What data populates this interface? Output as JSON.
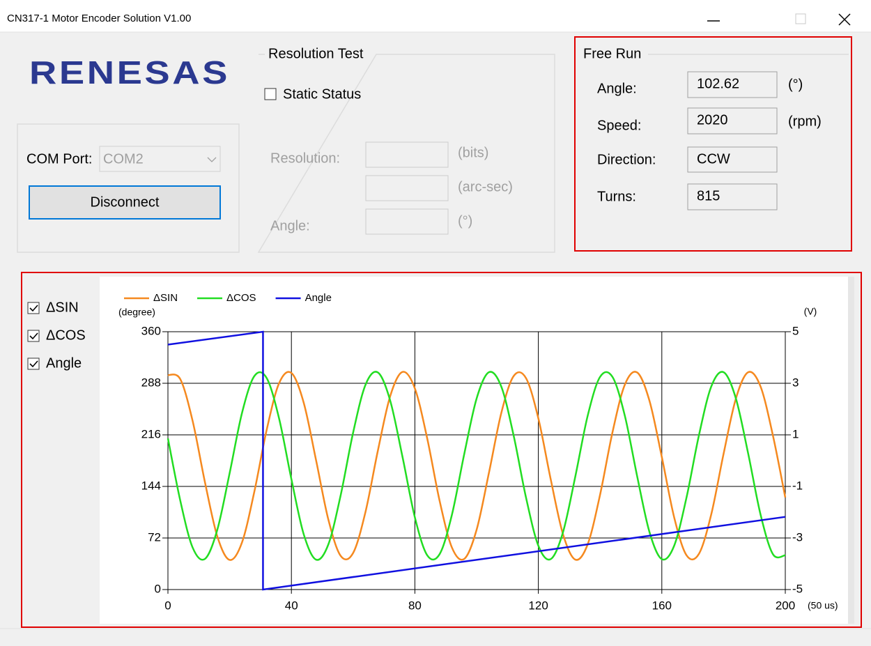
{
  "window": {
    "title": "CN317-1 Motor Encoder Solution V1.00"
  },
  "logo": "RENESAS",
  "connection": {
    "com_port_label": "COM Port:",
    "com_port": "COM2",
    "button": "Disconnect"
  },
  "resolution_test": {
    "title": "Resolution Test",
    "static_status": "Static Status",
    "resolution_label": "Resolution:",
    "bits_unit": "(bits)",
    "arcsec_unit": "(arc-sec)",
    "angle_label": "Angle:",
    "angle_unit": "(°)"
  },
  "free_run": {
    "title": "Free Run",
    "fields": [
      {
        "label": "Angle:",
        "value": 102.62,
        "unit": "(°)"
      },
      {
        "label": "Speed:",
        "value": 2020,
        "unit": "(rpm)"
      },
      {
        "label": "Direction:",
        "value": "CCW"
      },
      {
        "label": "Turns:",
        "value": 815
      }
    ]
  },
  "chart_data": {
    "type": "line",
    "xlabel": "(50 us)",
    "ylabel": "(degree)",
    "y2label": "(V)",
    "x": [
      0,
      4,
      8,
      12,
      16,
      20,
      24,
      28,
      32,
      36,
      40,
      44,
      48,
      52,
      56,
      60,
      64,
      68,
      72,
      76,
      80,
      84,
      88,
      92,
      96,
      100,
      104,
      108,
      112,
      116,
      120,
      124,
      128,
      132,
      136,
      140,
      144,
      148,
      152,
      156,
      160,
      164,
      168,
      172,
      176,
      180,
      184,
      188,
      192,
      196,
      200
    ],
    "series": [
      {
        "name": "ΔSIN",
        "color": "#f5891f",
        "axis": "y2",
        "values": [
          3.32,
          3.16,
          1.54,
          -0.84,
          -2.94,
          -3.85,
          -3.17,
          -1.2,
          1.2,
          3.0,
          3.4,
          2.24,
          0.01,
          -2.3,
          -3.7,
          -3.58,
          -1.99,
          0.38,
          2.5,
          3.44,
          2.8,
          0.86,
          -1.55,
          -3.37,
          -3.81,
          -2.68,
          -0.47,
          1.85,
          3.28,
          3.2,
          1.64,
          -0.72,
          -2.86,
          -3.84,
          -3.24,
          -1.32,
          1.09,
          2.94,
          3.42,
          2.32,
          0.14,
          -2.2,
          -3.67,
          -3.62,
          -2.09,
          0.26,
          2.41,
          3.43,
          2.87,
          0.97,
          -1.43
        ]
      },
      {
        "name": "ΔCOS",
        "color": "#22dd22",
        "axis": "y2",
        "values": [
          0.86,
          -1.55,
          -3.37,
          -3.81,
          -2.68,
          -0.48,
          1.85,
          3.28,
          3.2,
          1.64,
          -0.72,
          -2.86,
          -3.84,
          -3.24,
          -1.32,
          1.09,
          2.94,
          3.42,
          2.33,
          0.14,
          -2.2,
          -3.67,
          -3.63,
          -2.1,
          0.26,
          2.41,
          3.43,
          2.87,
          0.97,
          -1.43,
          -3.3,
          -3.82,
          -2.77,
          -0.6,
          1.75,
          3.25,
          3.25,
          1.75,
          -0.6,
          -2.77,
          -3.82,
          -3.3,
          -1.43,
          0.97,
          2.87,
          3.43,
          2.41,
          0.26,
          -2.1,
          -3.63,
          -3.67
        ]
      },
      {
        "name": "Angle",
        "color": "#1010e0",
        "x": [
          0,
          30.8,
          30.8,
          200
        ],
        "values": [
          342,
          360,
          0,
          101.5
        ]
      }
    ],
    "xlim": [
      0,
      200
    ],
    "xticks": [
      0,
      40,
      80,
      120,
      160,
      200
    ],
    "ylim": [
      0,
      360
    ],
    "yticks": [
      0,
      72,
      144,
      216,
      288,
      360
    ],
    "y2lim": [
      -5,
      5
    ],
    "y2ticks": [
      -5,
      -3,
      -1,
      1,
      3,
      5
    ],
    "grid": true
  }
}
